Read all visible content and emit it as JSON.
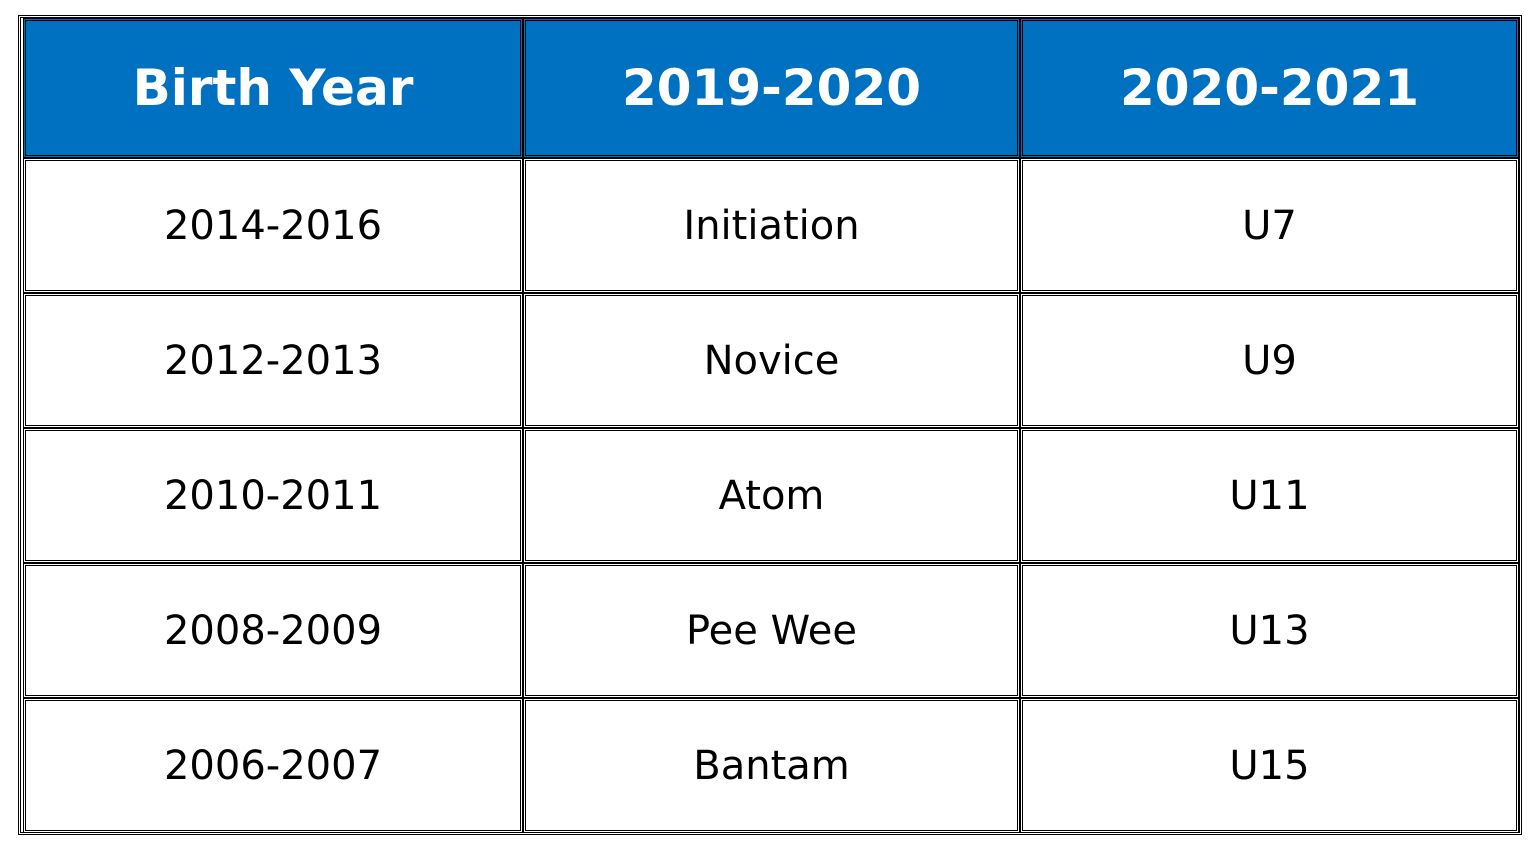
{
  "table": {
    "header": [
      "Birth Year",
      "2019-2020",
      "2020-2021"
    ],
    "rows": [
      [
        "2014-2016",
        "Initiation",
        "U7"
      ],
      [
        "2012-2013",
        "Novice",
        "U9"
      ],
      [
        "2010-2011",
        "Atom",
        "U11"
      ],
      [
        "2008-2009",
        "Pee Wee",
        "U13"
      ],
      [
        "2006-2007",
        "Bantam",
        "U15"
      ]
    ]
  }
}
